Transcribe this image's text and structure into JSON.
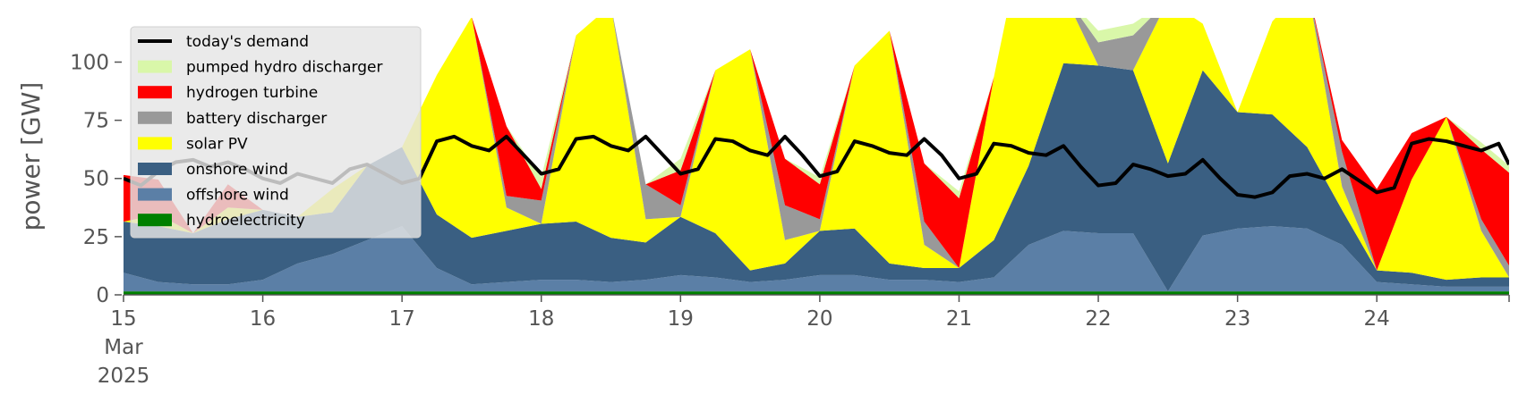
{
  "chart_data": {
    "type": "area",
    "ylabel": "power [GW]",
    "xlabel": "",
    "ylim": [
      0,
      119
    ],
    "xlim": [
      15,
      24.95
    ],
    "y_ticks": [
      0,
      25,
      50,
      75,
      100
    ],
    "x_ticks": [
      {
        "value": 15,
        "lines": [
          "15",
          "Mar",
          "2025"
        ]
      },
      {
        "value": 16,
        "lines": [
          "16"
        ]
      },
      {
        "value": 17,
        "lines": [
          "17"
        ]
      },
      {
        "value": 18,
        "lines": [
          "18"
        ]
      },
      {
        "value": 19,
        "lines": [
          "19"
        ]
      },
      {
        "value": 20,
        "lines": [
          "20"
        ]
      },
      {
        "value": 21,
        "lines": [
          "21"
        ]
      },
      {
        "value": 22,
        "lines": [
          "22"
        ]
      },
      {
        "value": 23,
        "lines": [
          "23"
        ]
      },
      {
        "value": 24,
        "lines": [
          "24"
        ]
      }
    ],
    "grid": false,
    "legend_position": "top-left",
    "stack_order": [
      "hydroelectricity",
      "offshore wind",
      "onshore wind",
      "solar PV",
      "battery discharger",
      "hydrogen turbine",
      "pumped hydro discharger"
    ],
    "x": [
      15,
      15.25,
      15.5,
      15.75,
      16,
      16.25,
      16.5,
      16.75,
      17,
      17.25,
      17.5,
      17.75,
      18,
      18.25,
      18.5,
      18.75,
      19,
      19.25,
      19.5,
      19.75,
      20,
      20.25,
      20.5,
      20.75,
      21,
      21.25,
      21.5,
      21.75,
      22,
      22.25,
      22.5,
      22.75,
      23,
      23.25,
      23.5,
      23.75,
      24,
      24.25,
      24.5,
      24.75,
      24.95
    ],
    "series": [
      {
        "name": "hydroelectricity",
        "color": "#008000",
        "values": [
          1.5,
          1.5,
          1.5,
          1.5,
          1.5,
          1.5,
          1.5,
          1.5,
          1.5,
          1.5,
          1.5,
          1.5,
          1.5,
          1.5,
          1.5,
          1.5,
          1.5,
          1.5,
          1.5,
          1.5,
          1.5,
          1.5,
          1.5,
          1.5,
          1.5,
          1.5,
          1.5,
          1.5,
          1.5,
          1.5,
          1.5,
          1.5,
          1.5,
          1.5,
          1.5,
          1.5,
          1.5,
          1.5,
          1.5,
          1.5,
          1.5
        ]
      },
      {
        "name": "offshore wind",
        "color": "#5b7fa6",
        "values": [
          8,
          4,
          3,
          3,
          5,
          12,
          16,
          22,
          28,
          10,
          3,
          4,
          5,
          5,
          4,
          5,
          7,
          6,
          4,
          5,
          7,
          7,
          5,
          5,
          4,
          6,
          20,
          26,
          25,
          25,
          0,
          24,
          27,
          28,
          27,
          20,
          4,
          3,
          2,
          2,
          2
        ]
      },
      {
        "name": "onshore wind",
        "color": "#3a5f82",
        "values": [
          22,
          24,
          22,
          28,
          30,
          20,
          18,
          32,
          34,
          23,
          20,
          22,
          24,
          25,
          19,
          16,
          25,
          19,
          5,
          7,
          19,
          20,
          7,
          5,
          6,
          16,
          34,
          72,
          72,
          70,
          55,
          71,
          50,
          48,
          35,
          15,
          5,
          5,
          3,
          4,
          4
        ]
      },
      {
        "name": "solar PV",
        "color": "#ffff00",
        "values": [
          0,
          5,
          0,
          5,
          0,
          0,
          10,
          0,
          0,
          60,
          95,
          10,
          0,
          80,
          100,
          10,
          0,
          70,
          95,
          10,
          0,
          70,
          100,
          10,
          0,
          70,
          110,
          30,
          0,
          0,
          70,
          20,
          0,
          40,
          70,
          10,
          0,
          40,
          70,
          20,
          0
        ]
      },
      {
        "name": "battery discharger",
        "color": "#999999",
        "values": [
          0,
          0,
          0,
          0,
          0,
          0,
          0,
          0,
          0,
          0,
          0,
          5,
          10,
          0,
          0,
          15,
          5,
          0,
          0,
          15,
          5,
          0,
          0,
          10,
          0,
          0,
          0,
          0,
          10,
          15,
          0,
          0,
          0,
          0,
          0,
          15,
          0,
          0,
          0,
          5,
          5
        ]
      },
      {
        "name": "hydrogen turbine",
        "color": "#ff0000",
        "values": [
          20,
          15,
          0,
          10,
          0,
          0,
          0,
          0,
          0,
          0,
          0,
          30,
          5,
          0,
          0,
          0,
          15,
          0,
          0,
          20,
          15,
          0,
          0,
          25,
          30,
          0,
          0,
          0,
          0,
          0,
          0,
          0,
          0,
          0,
          0,
          5,
          35,
          20,
          0,
          30,
          40
        ]
      },
      {
        "name": "pumped hydro discharger",
        "color": "#d9f7a9",
        "values": [
          0,
          0,
          0,
          0,
          0,
          0,
          0,
          0,
          0,
          0,
          0,
          0,
          5,
          0,
          0,
          0,
          5,
          0,
          0,
          0,
          3,
          0,
          0,
          0,
          3,
          0,
          0,
          0,
          5,
          5,
          0,
          0,
          0,
          0,
          0,
          0,
          0,
          0,
          0,
          3,
          3
        ]
      }
    ],
    "demand": {
      "name": "today's demand",
      "color": "#000000",
      "x": [
        15,
        15.125,
        15.25,
        15.375,
        15.5,
        15.625,
        15.75,
        15.875,
        16,
        16.125,
        16.25,
        16.375,
        16.5,
        16.625,
        16.75,
        16.875,
        17,
        17.125,
        17.25,
        17.375,
        17.5,
        17.625,
        17.75,
        17.875,
        18,
        18.125,
        18.25,
        18.375,
        18.5,
        18.625,
        18.75,
        18.875,
        19,
        19.125,
        19.25,
        19.375,
        19.5,
        19.625,
        19.75,
        19.875,
        20,
        20.125,
        20.25,
        20.375,
        20.5,
        20.625,
        20.75,
        20.875,
        21,
        21.125,
        21.25,
        21.375,
        21.5,
        21.625,
        21.75,
        21.875,
        22,
        22.125,
        22.25,
        22.375,
        22.5,
        22.625,
        22.75,
        22.875,
        23,
        23.125,
        23.25,
        23.375,
        23.5,
        23.625,
        23.75,
        23.875,
        24,
        24.125,
        24.25,
        24.375,
        24.5,
        24.625,
        24.75,
        24.875,
        24.95
      ],
      "values": [
        50,
        47,
        53,
        57,
        58,
        55,
        57,
        54,
        50,
        48,
        52,
        50,
        48,
        54,
        56,
        52,
        48,
        50,
        66,
        68,
        64,
        62,
        68,
        60,
        52,
        54,
        67,
        68,
        64,
        62,
        68,
        60,
        52,
        54,
        67,
        66,
        62,
        60,
        68,
        60,
        51,
        53,
        66,
        64,
        61,
        60,
        67,
        60,
        50,
        52,
        65,
        64,
        61,
        60,
        64,
        55,
        47,
        48,
        56,
        54,
        51,
        52,
        58,
        50,
        43,
        42,
        44,
        51,
        52,
        50,
        54,
        49,
        44,
        46,
        65,
        67,
        66,
        64,
        62,
        65,
        56
      ]
    },
    "legend": [
      "today's demand",
      "pumped hydro discharger",
      "hydrogen turbine",
      "battery discharger",
      "solar PV",
      "onshore wind",
      "offshore wind",
      "hydroelectricity"
    ]
  }
}
